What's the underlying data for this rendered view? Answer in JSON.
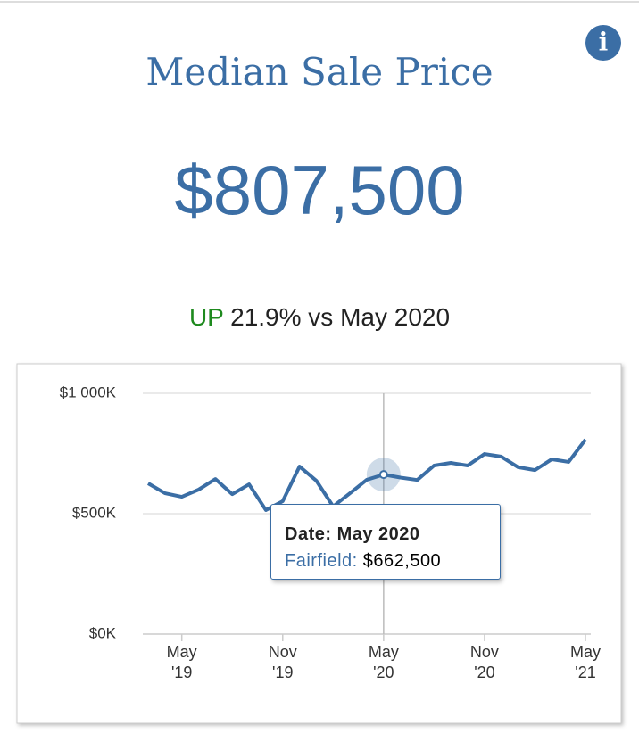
{
  "info_icon": "i",
  "headline": {
    "value": "$807,500",
    "direction": "UP",
    "change": "21.9% vs May 2020"
  },
  "chart_data": {
    "type": "line",
    "title": "Median Sale Price",
    "categories": [
      null,
      null,
      "May '19",
      null,
      null,
      null,
      null,
      null,
      "Nov '19",
      null,
      null,
      null,
      null,
      null,
      "May '20",
      null,
      null,
      null,
      null,
      null,
      "Nov '20",
      null,
      null,
      null,
      null,
      null,
      "May '21"
    ],
    "series": [
      {
        "name": "Fairfield",
        "color": "#3b6ea5",
        "values": [
          626,
          585,
          570,
          600,
          644,
          581,
          622,
          515,
          552,
          696,
          637,
          530,
          585,
          641,
          662.5,
          650,
          640,
          700,
          711,
          700,
          748,
          737,
          693,
          681,
          726,
          715,
          807.5
        ]
      }
    ],
    "ylim": [
      0,
      1000
    ],
    "yticks": [
      {
        "value": 0,
        "label": "$0K"
      },
      {
        "value": 500,
        "label": "$500K"
      },
      {
        "value": 1000,
        "label": "$1 000K"
      }
    ],
    "grid": true,
    "tooltip": {
      "index": 14,
      "date": "Date: May 2020",
      "series_label": "Fairfield:",
      "value": "$662,500"
    }
  }
}
